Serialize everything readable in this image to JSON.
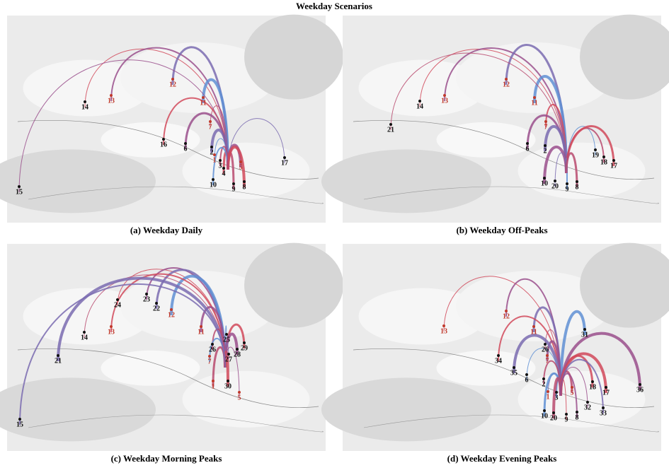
{
  "title": "Weekday Scenarios",
  "label_colors": {
    "red": "#c0392b",
    "black": "#111111"
  },
  "panels": [
    {
      "caption": "(a) Weekday Daily",
      "labels": [
        {
          "text": "14",
          "color": "black"
        },
        {
          "text": "13",
          "color": "red"
        },
        {
          "text": "12",
          "color": "red"
        },
        {
          "text": "11",
          "color": "red"
        },
        {
          "text": "7",
          "color": "red"
        },
        {
          "text": "16",
          "color": "black"
        },
        {
          "text": "6",
          "color": "black"
        },
        {
          "text": "2",
          "color": "black"
        },
        {
          "text": "1",
          "color": "red"
        },
        {
          "text": "3",
          "color": "black"
        },
        {
          "text": "4",
          "color": "black"
        },
        {
          "text": "5",
          "color": "red"
        },
        {
          "text": "17",
          "color": "black"
        },
        {
          "text": "10",
          "color": "black"
        },
        {
          "text": "9",
          "color": "black"
        },
        {
          "text": "8",
          "color": "black"
        },
        {
          "text": "15",
          "color": "black"
        }
      ]
    },
    {
      "caption": "(b) Weekday Off-Peaks",
      "labels": [
        {
          "text": "14",
          "color": "black"
        },
        {
          "text": "13",
          "color": "red"
        },
        {
          "text": "12",
          "color": "red"
        },
        {
          "text": "11",
          "color": "red"
        },
        {
          "text": "21",
          "color": "black"
        },
        {
          "text": "7",
          "color": "red"
        },
        {
          "text": "6",
          "color": "black"
        },
        {
          "text": "2",
          "color": "black"
        },
        {
          "text": "19",
          "color": "black"
        },
        {
          "text": "18",
          "color": "black"
        },
        {
          "text": "17",
          "color": "black"
        },
        {
          "text": "10",
          "color": "black"
        },
        {
          "text": "20",
          "color": "black"
        },
        {
          "text": "9",
          "color": "black"
        },
        {
          "text": "8",
          "color": "black"
        }
      ]
    },
    {
      "caption": "(c) Weekday Morning Peaks",
      "labels": [
        {
          "text": "24",
          "color": "black"
        },
        {
          "text": "23",
          "color": "black"
        },
        {
          "text": "22",
          "color": "black"
        },
        {
          "text": "12",
          "color": "red"
        },
        {
          "text": "14",
          "color": "black"
        },
        {
          "text": "13",
          "color": "red"
        },
        {
          "text": "11",
          "color": "red"
        },
        {
          "text": "21",
          "color": "black"
        },
        {
          "text": "25",
          "color": "black"
        },
        {
          "text": "26",
          "color": "black"
        },
        {
          "text": "29",
          "color": "black"
        },
        {
          "text": "28",
          "color": "black"
        },
        {
          "text": "27",
          "color": "black"
        },
        {
          "text": "7",
          "color": "red"
        },
        {
          "text": "1",
          "color": "red"
        },
        {
          "text": "30",
          "color": "black"
        },
        {
          "text": "5",
          "color": "red"
        },
        {
          "text": "15",
          "color": "black"
        }
      ]
    },
    {
      "caption": "(d) Weekday Evening  Peaks",
      "labels": [
        {
          "text": "13",
          "color": "red"
        },
        {
          "text": "12",
          "color": "red"
        },
        {
          "text": "11",
          "color": "red"
        },
        {
          "text": "31",
          "color": "black"
        },
        {
          "text": "26",
          "color": "black"
        },
        {
          "text": "34",
          "color": "black"
        },
        {
          "text": "7",
          "color": "red"
        },
        {
          "text": "35",
          "color": "black"
        },
        {
          "text": "6",
          "color": "black"
        },
        {
          "text": "2",
          "color": "black"
        },
        {
          "text": "18",
          "color": "black"
        },
        {
          "text": "36",
          "color": "black"
        },
        {
          "text": "1",
          "color": "red"
        },
        {
          "text": "3",
          "color": "black"
        },
        {
          "text": "5",
          "color": "red"
        },
        {
          "text": "17",
          "color": "black"
        },
        {
          "text": "32",
          "color": "black"
        },
        {
          "text": "33",
          "color": "black"
        },
        {
          "text": "10",
          "color": "black"
        },
        {
          "text": "20",
          "color": "black"
        },
        {
          "text": "9",
          "color": "black"
        },
        {
          "text": "8",
          "color": "black"
        }
      ]
    }
  ]
}
